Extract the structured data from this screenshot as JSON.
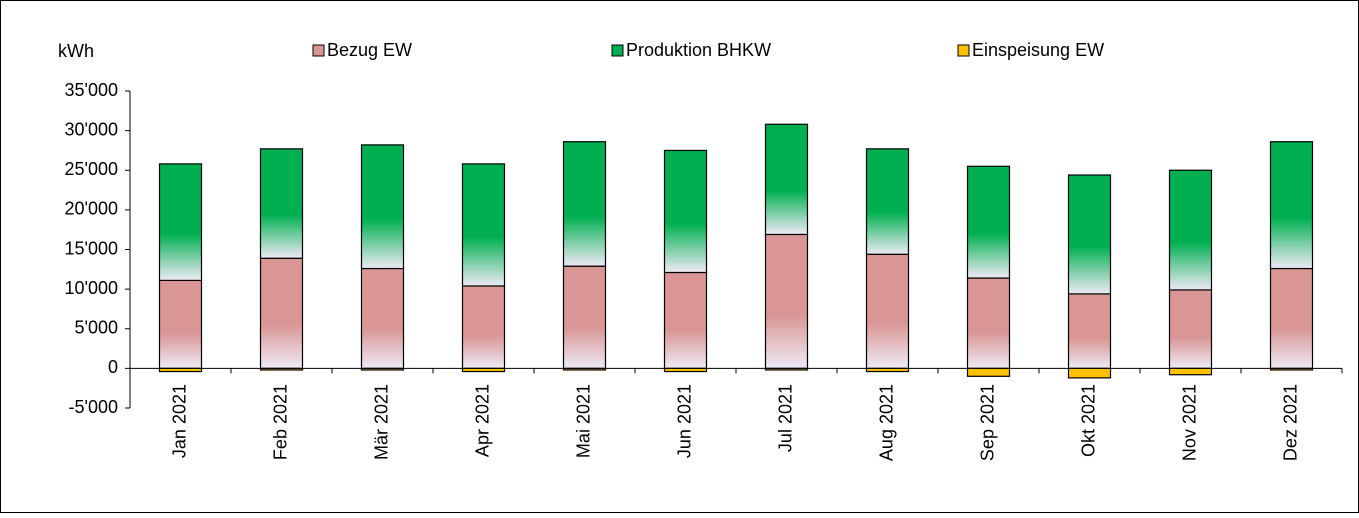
{
  "chart_data": {
    "type": "stacked-bar",
    "y_label": "kWh",
    "categories": [
      "Jan 2021",
      "Feb 2021",
      "Mär 2021",
      "Apr 2021",
      "Mai 2021",
      "Jun 2021",
      "Jul 2021",
      "Aug 2021",
      "Sep 2021",
      "Okt 2021",
      "Nov 2021",
      "Dez 2021"
    ],
    "series": [
      {
        "name": "Bezug EW",
        "color": "#d99694",
        "values": [
          11100,
          13900,
          12600,
          10400,
          12900,
          12100,
          16900,
          14400,
          11400,
          9400,
          9900,
          12600
        ]
      },
      {
        "name": "Produktion BHKW",
        "color": "#00b050",
        "values": [
          14700,
          13800,
          15600,
          15400,
          15700,
          15400,
          13900,
          13300,
          14100,
          15000,
          15100,
          16000
        ]
      },
      {
        "name": "Einspeisung EW",
        "color": "#ffc000",
        "values": [
          -400,
          -200,
          -200,
          -400,
          -200,
          -400,
          -200,
          -400,
          -1000,
          -1200,
          -800,
          -200
        ]
      }
    ],
    "ylim": [
      -5000,
      35000
    ],
    "yticks": [
      {
        "value": -5000,
        "label": "-5'000"
      },
      0,
      {
        "value": 5000,
        "label": "5'000"
      },
      {
        "value": 10000,
        "label": "10'000"
      },
      {
        "value": 15000,
        "label": "15'000"
      },
      {
        "value": 20000,
        "label": "20'000"
      },
      {
        "value": 25000,
        "label": "25'000"
      },
      {
        "value": 30000,
        "label": "30'000"
      },
      {
        "value": 35000,
        "label": "35'000"
      }
    ]
  }
}
